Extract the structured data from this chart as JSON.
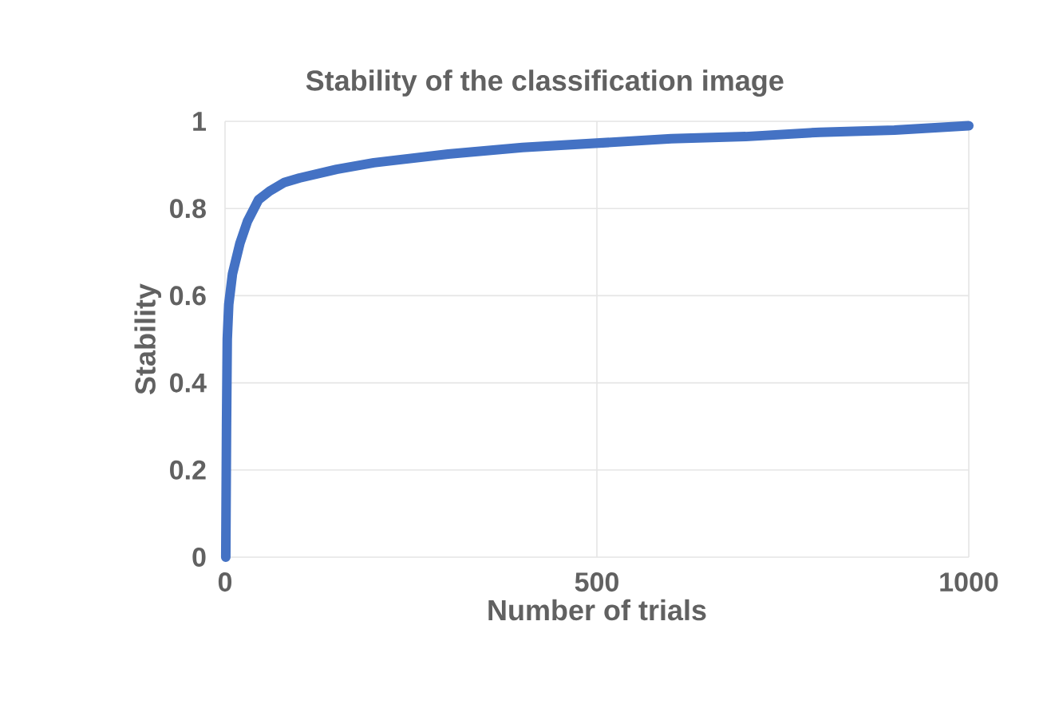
{
  "chart_data": {
    "type": "line",
    "title": "Stability of the classification image",
    "xlabel": "Number of trials",
    "ylabel": "Stability",
    "series": [
      {
        "color": "#4472c4",
        "x": [
          1,
          2,
          3,
          5,
          10,
          20,
          30,
          45,
          60,
          80,
          100,
          150,
          200,
          300,
          400,
          500,
          600,
          700,
          800,
          900,
          1000
        ],
        "values": [
          0,
          0.3,
          0.5,
          0.58,
          0.65,
          0.72,
          0.77,
          0.82,
          0.84,
          0.86,
          0.87,
          0.89,
          0.905,
          0.925,
          0.94,
          0.95,
          0.96,
          0.965,
          0.975,
          0.98,
          0.99
        ]
      }
    ],
    "xlim": [
      0,
      1000
    ],
    "ylim": [
      0,
      1
    ],
    "xticks": [
      0,
      500,
      1000
    ],
    "yticks": [
      0,
      0.2,
      0.4,
      0.6,
      0.8,
      1
    ],
    "grid": true,
    "marker": "none",
    "line_style": "solid"
  }
}
